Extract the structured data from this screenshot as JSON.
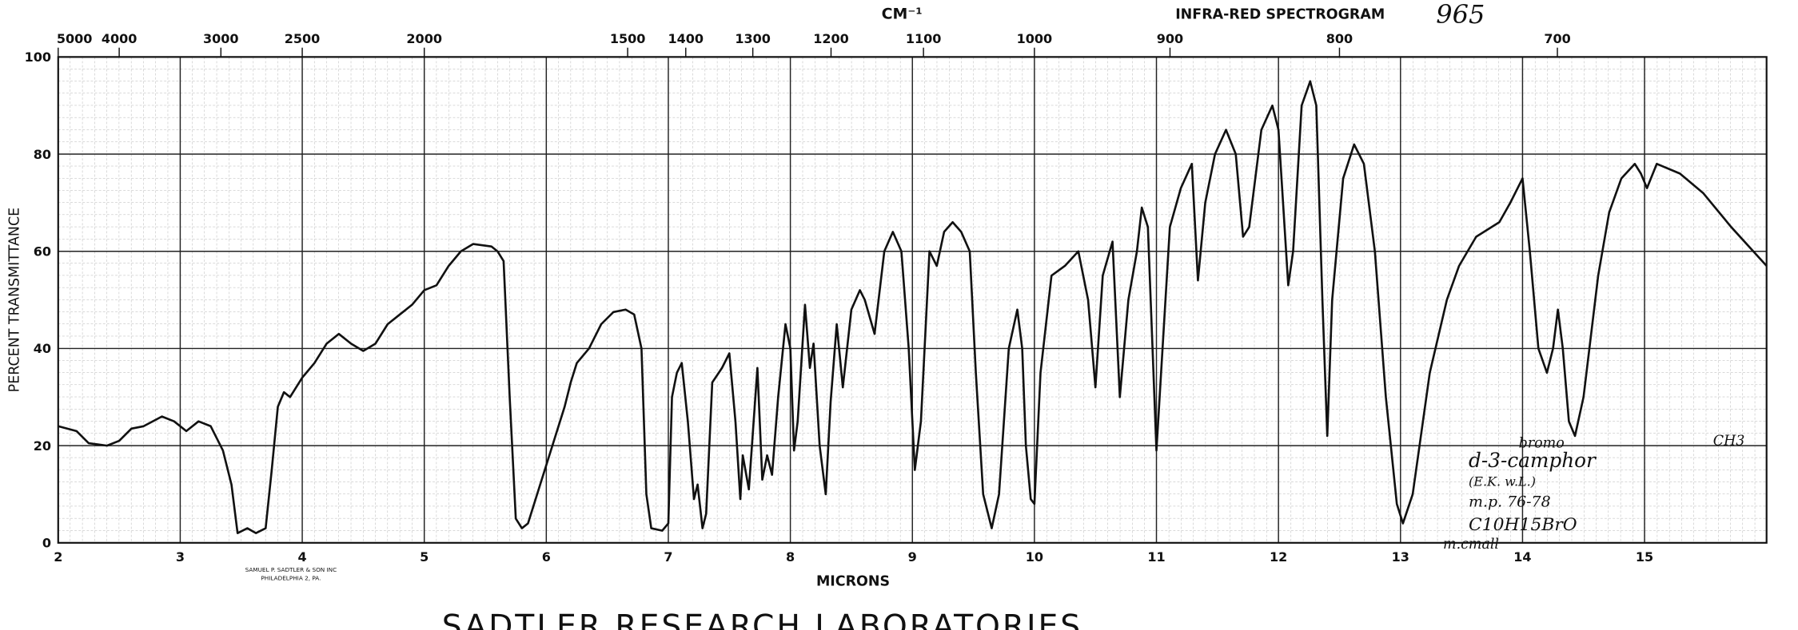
{
  "chart_data": {
    "type": "line",
    "title": "INFRA-RED SPECTROGRAM",
    "x2_label": "CM⁻¹",
    "x_label": "MICRONS",
    "y_label": "PERCENT TRANSMITTANCE",
    "number": "965",
    "publisher": [
      "SAMUEL P. SADTLER & SON INC",
      "PHILADELPHIA 2, PA."
    ],
    "footer": "SADTLER RESEARCH LABORATORIES",
    "annotations": [
      "bromo",
      "d-3-camphor",
      "(E.K. w.L.)",
      "m.p. 76-78",
      "C10H15BrO",
      "m.cmall",
      "CH3"
    ],
    "xlim": [
      2,
      16
    ],
    "xticks": [
      2,
      3,
      4,
      5,
      6,
      7,
      8,
      9,
      10,
      11,
      12,
      13,
      14,
      15
    ],
    "x2lim": [
      5000,
      625
    ],
    "x2_scale": "reciprocal",
    "x2ticks": [
      5000,
      4000,
      3000,
      2500,
      2000,
      1500,
      1400,
      1300,
      1200,
      1100,
      1000,
      900,
      800,
      700
    ],
    "ylim": [
      0,
      100
    ],
    "yticks": [
      0,
      20,
      40,
      60,
      80,
      100
    ],
    "grid": true,
    "color": "#111111",
    "x": [
      2.0,
      2.15,
      2.25,
      2.4,
      2.5,
      2.6,
      2.7,
      2.85,
      2.95,
      3.05,
      3.15,
      3.25,
      3.35,
      3.42,
      3.47,
      3.55,
      3.62,
      3.7,
      3.75,
      3.8,
      3.85,
      3.9,
      4.0,
      4.1,
      4.2,
      4.3,
      4.4,
      4.5,
      4.6,
      4.7,
      4.8,
      4.9,
      5.0,
      5.1,
      5.2,
      5.3,
      5.4,
      5.55,
      5.6,
      5.65,
      5.7,
      5.75,
      5.8,
      5.85,
      5.95,
      6.05,
      6.15,
      6.2,
      6.25,
      6.35,
      6.45,
      6.55,
      6.65,
      6.72,
      6.78,
      6.82,
      6.86,
      6.95,
      7.0,
      7.03,
      7.07,
      7.11,
      7.16,
      7.21,
      7.24,
      7.28,
      7.31,
      7.36,
      7.44,
      7.5,
      7.55,
      7.59,
      7.61,
      7.66,
      7.73,
      7.77,
      7.81,
      7.85,
      7.9,
      7.96,
      8.0,
      8.03,
      8.06,
      8.12,
      8.16,
      8.19,
      8.24,
      8.29,
      8.33,
      8.38,
      8.43,
      8.5,
      8.57,
      8.61,
      8.69,
      8.77,
      8.84,
      8.91,
      8.97,
      9.02,
      9.07,
      9.14,
      9.2,
      9.26,
      9.33,
      9.4,
      9.47,
      9.52,
      9.58,
      9.65,
      9.71,
      9.79,
      9.86,
      9.9,
      9.93,
      9.97,
      10.0,
      10.05,
      10.14,
      10.25,
      10.36,
      10.44,
      10.5,
      10.56,
      10.64,
      10.7,
      10.77,
      10.84,
      10.88,
      10.93,
      11.0,
      11.05,
      11.11,
      11.2,
      11.29,
      11.34,
      11.4,
      11.48,
      11.57,
      11.65,
      11.71,
      11.76,
      11.86,
      11.95,
      12.0,
      12.08,
      12.12,
      12.19,
      12.26,
      12.31,
      12.36,
      12.4,
      12.44,
      12.53,
      12.62,
      12.7,
      12.79,
      12.88,
      12.97,
      13.02,
      13.1,
      13.24,
      13.38,
      13.48,
      13.62,
      13.81,
      13.9,
      14.0,
      14.06,
      14.13,
      14.2,
      14.25,
      14.29,
      14.33,
      14.38,
      14.43,
      14.5,
      14.62,
      14.71,
      14.81,
      14.92,
      14.97,
      15.02,
      15.1,
      15.29,
      15.48,
      15.71,
      16.0
    ],
    "values": [
      24,
      23,
      20.5,
      20,
      21,
      23.5,
      24,
      26,
      25,
      23,
      25,
      24,
      19,
      12,
      2,
      3,
      2,
      3,
      15,
      28,
      31,
      30,
      34,
      37,
      41,
      43,
      41,
      39.5,
      41,
      45,
      47,
      49,
      52,
      53,
      57,
      60,
      61.5,
      61,
      60,
      58,
      30,
      5,
      3,
      4,
      12,
      20,
      28,
      33,
      37,
      40,
      45,
      47.5,
      48,
      47,
      40,
      10,
      3,
      2.5,
      4,
      30,
      35,
      37,
      25,
      9,
      12,
      3,
      6,
      33,
      36,
      39,
      25,
      9,
      18,
      11,
      36,
      13,
      18,
      14,
      30,
      45,
      40,
      19,
      25,
      49,
      36,
      41,
      20,
      10,
      29,
      45,
      32,
      48,
      52,
      50,
      43,
      60,
      64,
      60,
      40,
      15,
      25,
      60,
      57,
      64,
      66,
      64,
      60,
      35,
      10,
      3,
      10,
      40,
      48,
      40,
      20,
      9,
      8,
      35,
      55,
      57,
      60,
      50,
      32,
      55,
      62,
      30,
      50,
      60,
      69,
      65,
      19,
      40,
      65,
      73,
      78,
      54,
      70,
      80,
      85,
      80,
      63,
      65,
      85,
      90,
      85,
      53,
      60,
      90,
      95,
      90,
      50,
      22,
      50,
      75,
      82,
      78,
      60,
      30,
      8,
      4,
      10,
      35,
      50,
      57,
      63,
      66,
      70,
      75,
      60,
      40,
      35,
      40,
      48,
      40,
      25,
      22,
      30,
      55,
      68,
      75,
      78,
      76,
      73,
      78,
      76,
      72,
      65,
      57
    ]
  }
}
